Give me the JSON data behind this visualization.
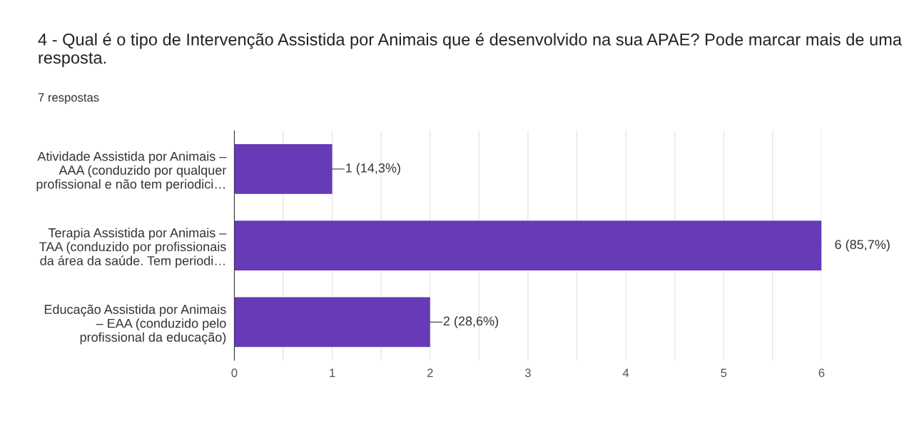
{
  "chart_data": {
    "type": "bar",
    "orientation": "horizontal",
    "title": "4 - Qual é o tipo de Intervenção Assistida por Animais que é desenvolvido na sua APAE? Pode marcar mais de uma resposta.",
    "subtitle": "7 respostas",
    "categories": [
      "Atividade Assistida por Animais –\nAAA (conduzido por qualquer\nprofissional e não tem periodici…",
      "Terapia Assistida por Animais –\nTAA (conduzido por profissionais\nda área da saúde. Tem periodi…",
      "Educação Assistida por Animais\n– EAA (conduzido pelo\nprofissional da educação)"
    ],
    "values": [
      1,
      6,
      2
    ],
    "value_labels": [
      "1 (14,3%)",
      "6 (85,7%)",
      "2 (28,6%)"
    ],
    "color": "#673ab7",
    "xlim": [
      0,
      6
    ],
    "xticks": [
      0,
      {
        "value": 0.5,
        "label": null
      },
      1,
      {
        "value": 1.5,
        "label": null
      },
      2,
      {
        "value": 2.5,
        "label": null
      },
      3,
      {
        "value": 3.5,
        "label": null
      },
      4,
      {
        "value": 4.5,
        "label": null
      },
      5,
      {
        "value": 5.5,
        "label": null
      },
      6
    ],
    "grid": "x"
  }
}
